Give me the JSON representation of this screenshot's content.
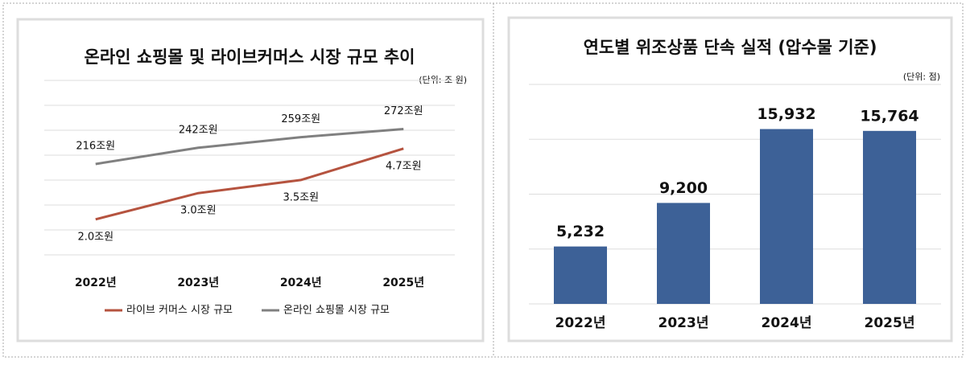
{
  "chart_data": [
    {
      "type": "line",
      "title": "온라인 쇼핑몰 및 라이브커머스 시장 규모 추이",
      "unit": "(단위: 조 원)",
      "categories": [
        "2022년",
        "2023년",
        "2024년",
        "2025년"
      ],
      "ylim": [
        60,
        350
      ],
      "y2lim": [
        0.4,
        7.3
      ],
      "grid": true,
      "legend": "bottom",
      "series": [
        {
          "name": "라이브 커머스 시장 규모",
          "color": "#b5533f",
          "axis": "y2",
          "values": [
            2.0,
            3.0,
            3.5,
            4.7
          ],
          "value_labels": [
            "2.0조원",
            "3.0조원",
            "3.5조원",
            "4.7조원"
          ]
        },
        {
          "name": "온라인 쇼핑몰 시장 규모",
          "color": "#808080",
          "values": [
            216,
            242,
            259,
            272
          ],
          "value_labels": [
            "216조원",
            "242조원",
            "259조원",
            "272조원"
          ]
        }
      ]
    },
    {
      "type": "bar",
      "title": "연도별 위조상품 단속 실적 (압수물 기준)",
      "unit": "(단위: 점)",
      "categories": [
        "2022년",
        "2023년",
        "2024년",
        "2025년"
      ],
      "values": [
        5232,
        9200,
        15932,
        15764
      ],
      "value_labels": [
        "5,232",
        "9,200",
        "15,932",
        "15,764"
      ],
      "color": "#3d6197",
      "ylim": [
        0,
        20000
      ],
      "grid": true
    }
  ]
}
